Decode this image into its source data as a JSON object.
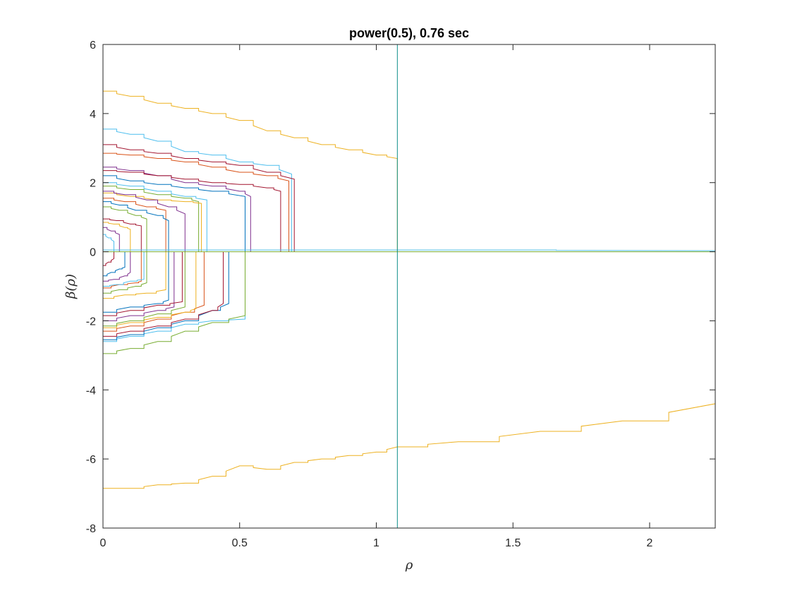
{
  "chart_data": {
    "type": "line",
    "title": "power(0.5), 0.76 sec",
    "xlabel": "ρ",
    "ylabel": "β(ρ)",
    "xlim": [
      0,
      2.24
    ],
    "ylim": [
      -8,
      6
    ],
    "xticks": [
      0,
      0.5,
      1,
      1.5,
      2
    ],
    "xtick_labels": [
      "0",
      "0.5",
      "1",
      "1.5",
      "2"
    ],
    "yticks": [
      -8,
      -6,
      -4,
      -2,
      0,
      2,
      4,
      6
    ],
    "ytick_labels": [
      "-8",
      "-6",
      "-4",
      "-2",
      "0",
      "2",
      "4",
      "6"
    ],
    "grid": false,
    "legend": "none",
    "vertical_line": {
      "x": 1.077,
      "color": "#0e8f8a"
    },
    "colors": [
      "#0072BD",
      "#D95319",
      "#EDB120",
      "#7E2F8E",
      "#77AC30",
      "#4DBEEE",
      "#A2142F"
    ],
    "series": [
      {
        "color": "#EDB120",
        "x": [
          0,
          0.1,
          0.2,
          0.3,
          0.4,
          0.5,
          0.6,
          0.7,
          0.8,
          0.9,
          1.0,
          1.077
        ],
        "y": [
          4.65,
          4.5,
          4.3,
          4.15,
          4.0,
          3.8,
          3.5,
          3.3,
          3.1,
          2.95,
          2.8,
          2.7
        ],
        "end_drop": true
      },
      {
        "color": "#EDB120",
        "x": [
          0,
          0.1,
          0.2,
          0.3,
          0.4,
          0.5,
          0.6,
          0.7,
          0.8,
          0.9,
          1.0,
          1.077,
          1.3,
          1.6,
          1.9,
          2.24
        ],
        "y": [
          -6.85,
          -6.85,
          -6.75,
          -6.7,
          -6.5,
          -6.2,
          -6.3,
          -6.1,
          -6.0,
          -5.9,
          -5.8,
          -5.65,
          -5.5,
          -5.2,
          -4.9,
          -4.4
        ],
        "end_drop": true
      },
      {
        "color": "#4DBEEE",
        "x": [
          0,
          0.1,
          0.2,
          0.3,
          0.4,
          0.5,
          0.6,
          0.69
        ],
        "y": [
          3.55,
          3.4,
          3.2,
          2.9,
          2.8,
          2.6,
          2.5,
          2.25
        ],
        "end_drop": true
      },
      {
        "color": "#A2142F",
        "x": [
          0,
          0.1,
          0.2,
          0.3,
          0.4,
          0.5,
          0.6,
          0.7
        ],
        "y": [
          3.1,
          2.95,
          2.85,
          2.7,
          2.6,
          2.5,
          2.3,
          2.1
        ],
        "end_drop": true
      },
      {
        "color": "#D95319",
        "x": [
          0,
          0.1,
          0.2,
          0.3,
          0.4,
          0.5,
          0.6,
          0.68
        ],
        "y": [
          2.85,
          2.8,
          2.7,
          2.6,
          2.45,
          2.3,
          2.2,
          2.05
        ],
        "end_drop": true
      },
      {
        "color": "#7E2F8E",
        "x": [
          0,
          0.1,
          0.2,
          0.3,
          0.4,
          0.5,
          0.54
        ],
        "y": [
          2.45,
          2.35,
          2.2,
          2.0,
          1.9,
          1.75,
          1.6
        ],
        "end_drop": true
      },
      {
        "color": "#A2142F",
        "x": [
          0,
          0.1,
          0.2,
          0.3,
          0.4,
          0.5,
          0.6,
          0.65
        ],
        "y": [
          2.35,
          2.3,
          2.2,
          2.1,
          2.0,
          1.95,
          1.85,
          1.75
        ],
        "end_drop": true
      },
      {
        "color": "#0072BD",
        "x": [
          0,
          0.1,
          0.2,
          0.3,
          0.4,
          0.52
        ],
        "y": [
          2.2,
          2.05,
          1.95,
          1.85,
          1.75,
          1.6
        ],
        "end_drop": true
      },
      {
        "color": "#4DBEEE",
        "x": [
          0,
          0.1,
          0.2,
          0.3,
          0.38
        ],
        "y": [
          2.0,
          1.9,
          1.75,
          1.6,
          1.5
        ],
        "end_drop": true
      },
      {
        "color": "#77AC30",
        "x": [
          0,
          0.1,
          0.2,
          0.3,
          0.35
        ],
        "y": [
          1.9,
          1.8,
          1.65,
          1.55,
          1.45
        ],
        "end_drop": true
      },
      {
        "color": "#EDB120",
        "x": [
          0,
          0.1,
          0.2,
          0.3,
          0.36
        ],
        "y": [
          1.7,
          1.6,
          1.5,
          1.45,
          1.4
        ],
        "end_drop": true
      },
      {
        "color": "#7E2F8E",
        "x": [
          0,
          0.08,
          0.16,
          0.24,
          0.3
        ],
        "y": [
          1.75,
          1.65,
          1.5,
          1.3,
          1.1
        ],
        "end_drop": true
      },
      {
        "color": "#D95319",
        "x": [
          0,
          0.08,
          0.16,
          0.23
        ],
        "y": [
          1.55,
          1.45,
          1.3,
          1.2
        ],
        "end_drop": true
      },
      {
        "color": "#0072BD",
        "x": [
          0,
          0.06,
          0.12,
          0.2,
          0.24
        ],
        "y": [
          1.45,
          1.35,
          1.2,
          1.05,
          0.9
        ],
        "end_drop": true
      },
      {
        "color": "#77AC30",
        "x": [
          0,
          0.06,
          0.12,
          0.16
        ],
        "y": [
          1.3,
          1.2,
          1.05,
          0.95
        ],
        "end_drop": true
      },
      {
        "color": "#A2142F",
        "x": [
          0,
          0.05,
          0.1,
          0.14
        ],
        "y": [
          0.95,
          0.9,
          0.8,
          0.75
        ],
        "end_drop": true
      },
      {
        "color": "#EDB120",
        "x": [
          0,
          0.04,
          0.08,
          0.1
        ],
        "y": [
          0.85,
          0.8,
          0.7,
          0.65
        ],
        "end_drop": true
      },
      {
        "color": "#7E2F8E",
        "x": [
          0,
          0.03,
          0.06
        ],
        "y": [
          0.7,
          0.6,
          0.5
        ],
        "end_drop": true
      },
      {
        "color": "#4DBEEE",
        "x": [
          0,
          0.02,
          0.04
        ],
        "y": [
          0.5,
          0.4,
          0.3
        ],
        "end_drop": true
      },
      {
        "color": "#4DBEEE",
        "x": [
          0,
          0.1,
          0.2,
          0.3,
          0.4,
          0.52
        ],
        "y": [
          -2.6,
          -2.45,
          -2.3,
          -2.1,
          -2.0,
          -1.95
        ],
        "end_drop": true
      },
      {
        "color": "#77AC30",
        "x": [
          0,
          0.1,
          0.2,
          0.3,
          0.4,
          0.52
        ],
        "y": [
          -2.95,
          -2.8,
          -2.6,
          -2.3,
          -2.05,
          -1.85
        ],
        "end_drop": true
      },
      {
        "color": "#0072BD",
        "x": [
          0,
          0.1,
          0.2,
          0.3,
          0.4,
          0.46
        ],
        "y": [
          -2.55,
          -2.4,
          -2.2,
          -2.0,
          -1.7,
          -1.5
        ],
        "end_drop": true
      },
      {
        "color": "#A2142F",
        "x": [
          0,
          0.1,
          0.2,
          0.3,
          0.4,
          0.44
        ],
        "y": [
          -2.45,
          -2.3,
          -2.15,
          -1.95,
          -1.7,
          -1.5
        ],
        "end_drop": true
      },
      {
        "color": "#D95319",
        "x": [
          0,
          0.1,
          0.2,
          0.3,
          0.37
        ],
        "y": [
          -2.3,
          -2.15,
          -1.95,
          -1.75,
          -1.55
        ],
        "end_drop": true
      },
      {
        "color": "#EDB120",
        "x": [
          0,
          0.1,
          0.2,
          0.3,
          0.34
        ],
        "y": [
          -2.2,
          -2.05,
          -1.9,
          -1.75,
          -1.65
        ],
        "end_drop": true
      },
      {
        "color": "#77AC30",
        "x": [
          0,
          0.1,
          0.2,
          0.3
        ],
        "y": [
          -2.15,
          -2.0,
          -1.8,
          -1.6
        ],
        "end_drop": true
      },
      {
        "color": "#7E2F8E",
        "x": [
          0,
          0.1,
          0.2,
          0.26
        ],
        "y": [
          -2.0,
          -1.85,
          -1.7,
          -1.6
        ],
        "end_drop": true
      },
      {
        "color": "#A2142F",
        "x": [
          0,
          0.1,
          0.2,
          0.29
        ],
        "y": [
          -1.85,
          -1.7,
          -1.55,
          -1.45
        ],
        "end_drop": true
      },
      {
        "color": "#0072BD",
        "x": [
          0,
          0.1,
          0.2,
          0.24
        ],
        "y": [
          -1.75,
          -1.6,
          -1.5,
          -1.4
        ],
        "end_drop": true
      },
      {
        "color": "#EDB120",
        "x": [
          0,
          0.08,
          0.16,
          0.23
        ],
        "y": [
          -1.35,
          -1.25,
          -1.2,
          -1.1
        ],
        "end_drop": true
      },
      {
        "color": "#77AC30",
        "x": [
          0,
          0.06,
          0.12,
          0.16
        ],
        "y": [
          -1.2,
          -1.1,
          -1.0,
          -0.9
        ],
        "end_drop": true
      },
      {
        "color": "#D95319",
        "x": [
          0,
          0.06,
          0.12,
          0.14
        ],
        "y": [
          -1.05,
          -0.95,
          -0.9,
          -0.85
        ],
        "end_drop": true
      },
      {
        "color": "#4DBEEE",
        "x": [
          0,
          0.05,
          0.1,
          0.15
        ],
        "y": [
          -1.0,
          -0.95,
          -0.85,
          -0.8
        ],
        "end_drop": true
      },
      {
        "color": "#7E2F8E",
        "x": [
          0,
          0.04,
          0.08,
          0.1
        ],
        "y": [
          -0.85,
          -0.8,
          -0.7,
          -0.6
        ],
        "end_drop": true
      },
      {
        "color": "#0072BD",
        "x": [
          0,
          0.03,
          0.06,
          0.08
        ],
        "y": [
          -0.7,
          -0.6,
          -0.5,
          -0.45
        ],
        "end_drop": true
      },
      {
        "color": "#A2142F",
        "x": [
          0,
          0.02,
          0.04
        ],
        "y": [
          -0.4,
          -0.3,
          -0.2
        ],
        "end_drop": true
      },
      {
        "color": "#4DBEEE",
        "x": [
          0,
          1.077,
          2.24
        ],
        "y": [
          0.05,
          0.05,
          0.03
        ],
        "end_drop": false
      },
      {
        "color": "#77AC30",
        "x": [
          0,
          1.077,
          2.24
        ],
        "y": [
          0.0,
          0.0,
          0.0
        ],
        "end_drop": false
      },
      {
        "color": "#EDB120",
        "x": [
          2.24,
          2.24
        ],
        "y": [
          0.0,
          -4.4
        ],
        "end_drop": false
      }
    ]
  }
}
